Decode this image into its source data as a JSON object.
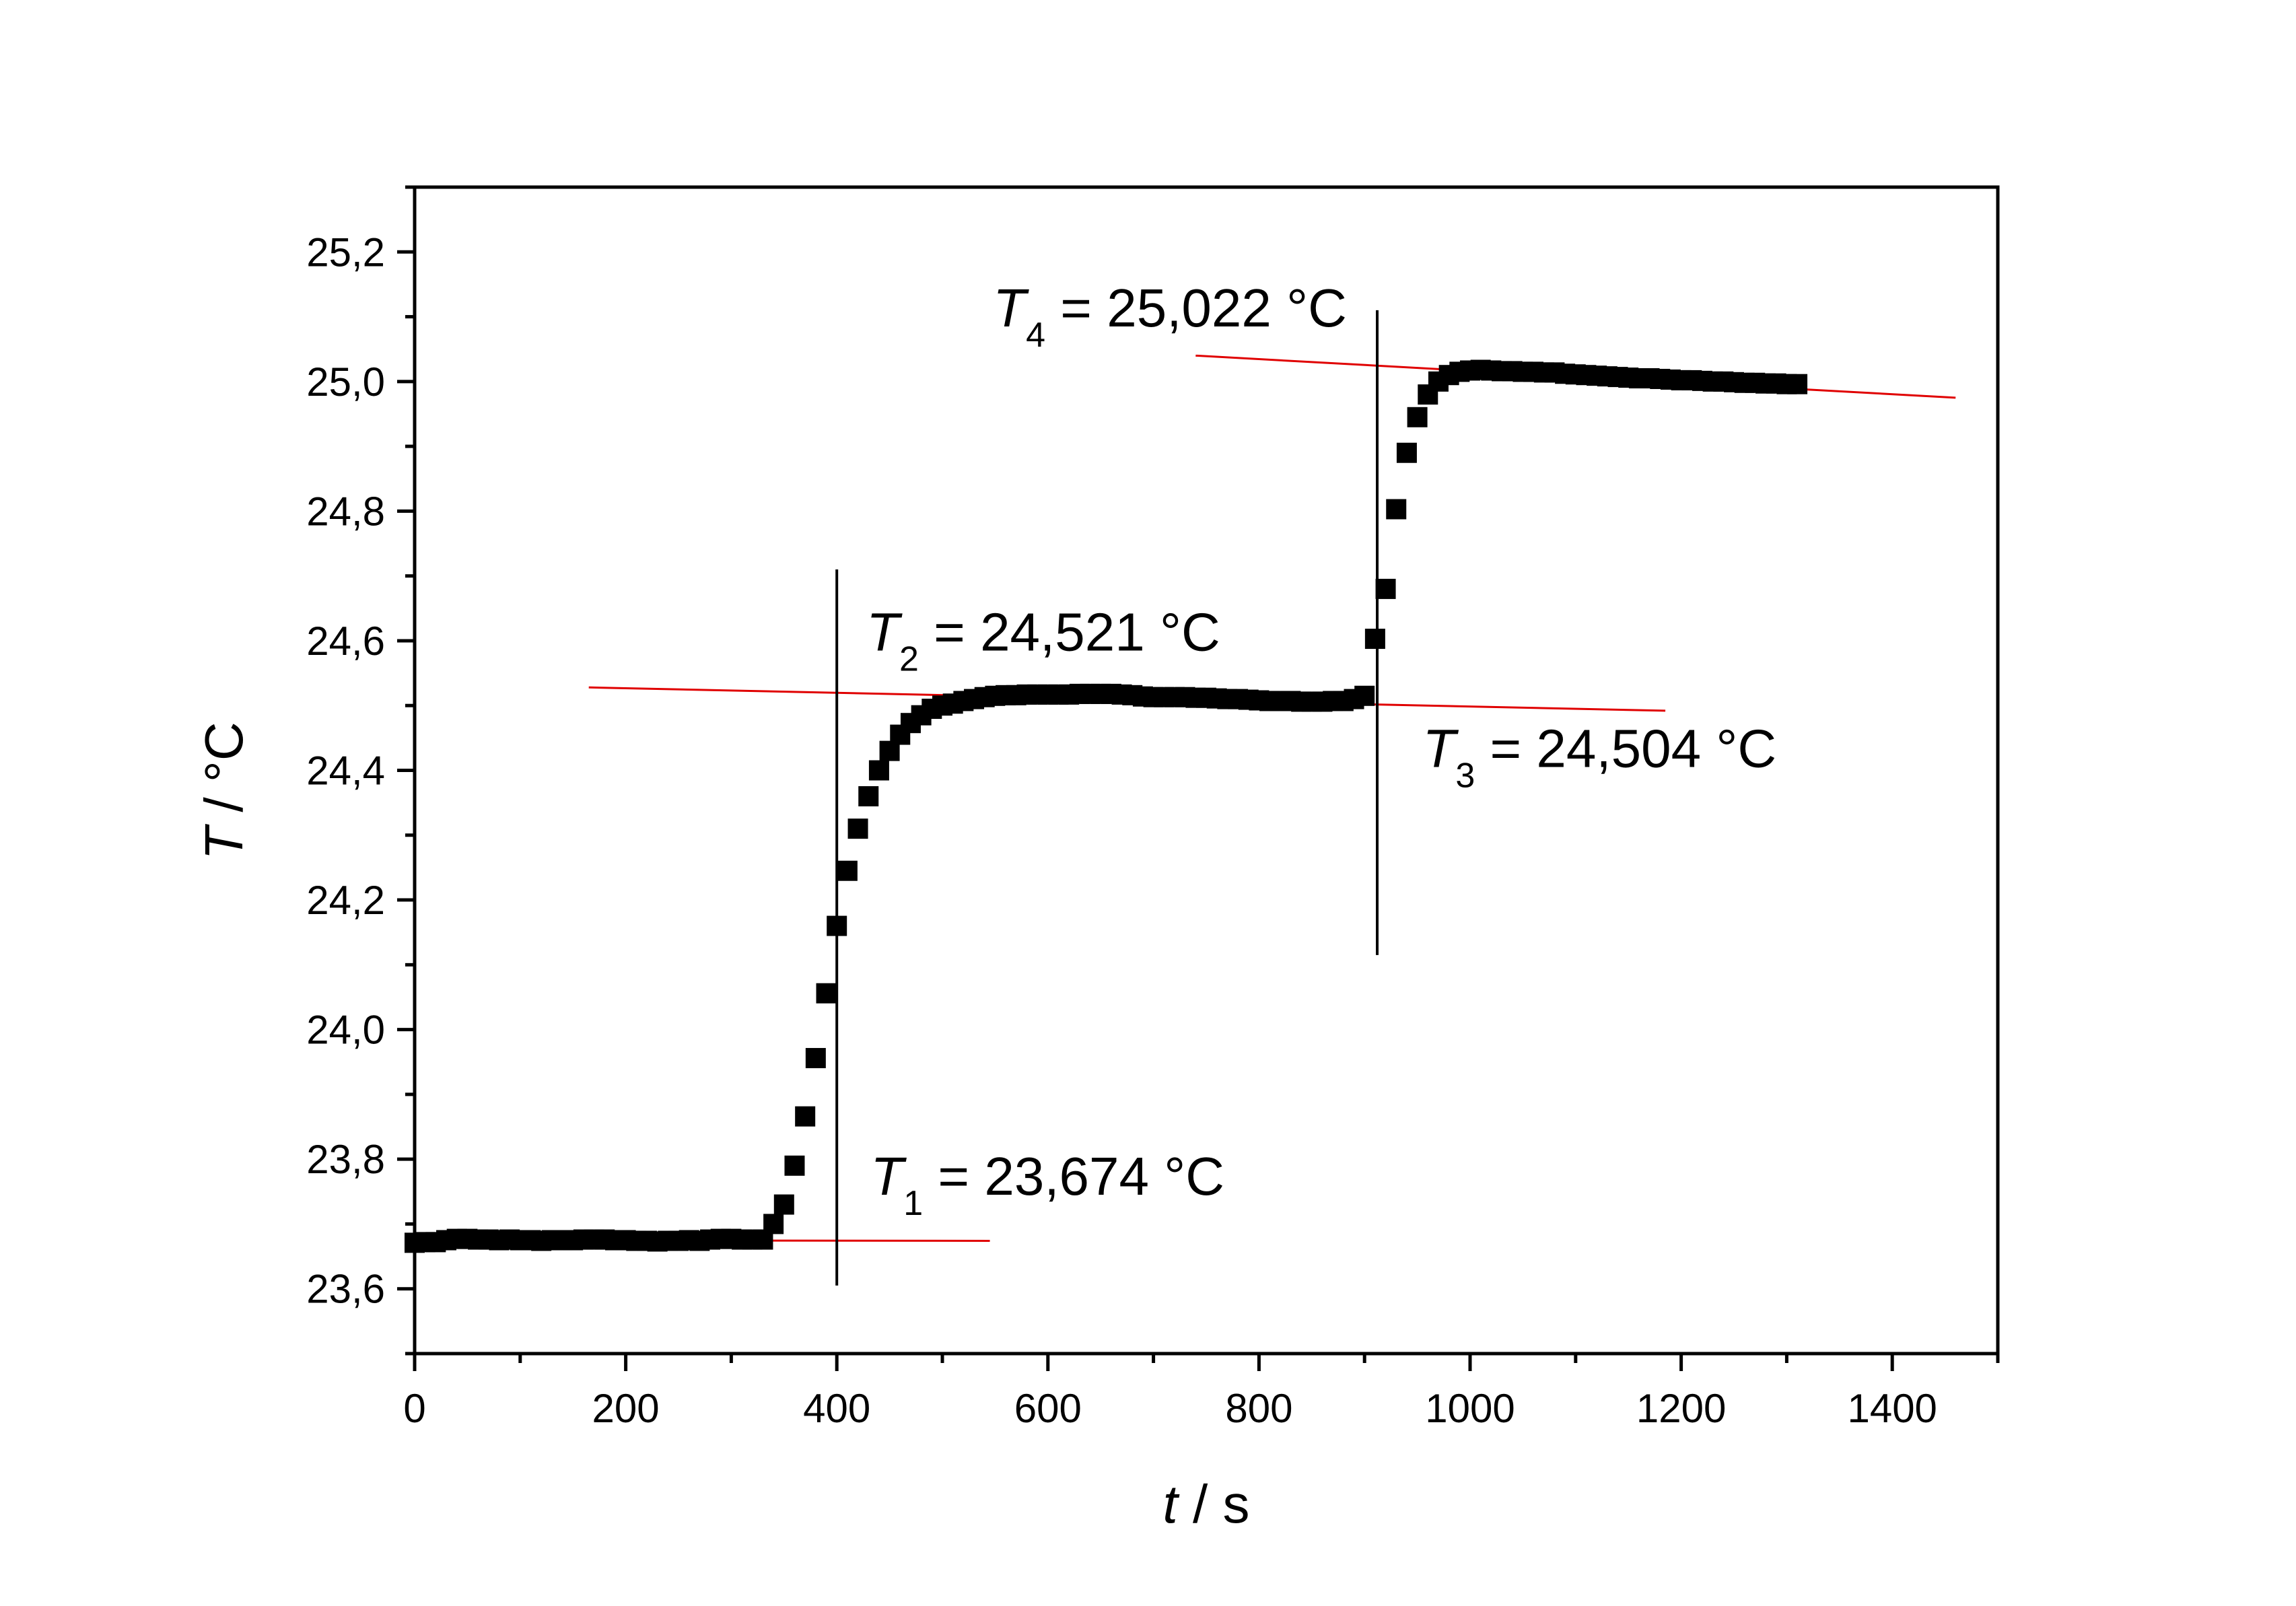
{
  "chart_data": {
    "type": "scatter",
    "xlabel": {
      "var": "t",
      "unit": " / s"
    },
    "ylabel": {
      "var": "T",
      "unit": " / °C"
    },
    "xlim": [
      0,
      1500
    ],
    "ylim": [
      23.5,
      25.3
    ],
    "x_ticks": [
      0,
      200,
      400,
      600,
      800,
      1000,
      1200,
      1400
    ],
    "x_tick_labels": [
      "0",
      "200",
      "400",
      "600",
      "800",
      "1000",
      "1200",
      "1400"
    ],
    "x_minor_step": 100,
    "y_ticks": [
      23.6,
      23.8,
      24.0,
      24.2,
      24.4,
      24.6,
      24.8,
      25.0,
      25.2
    ],
    "y_tick_labels": [
      "23,6",
      "23,8",
      "24,0",
      "24,2",
      "24,4",
      "24,6",
      "24,8",
      "25,0",
      "25,2"
    ],
    "y_minor_step": 0.1,
    "grid": false,
    "marker": "square",
    "marker_color": "#000000",
    "fit_line_color": "#e00000",
    "series": [
      {
        "x": [
          0,
          10,
          20,
          30,
          40,
          50,
          60,
          70,
          80,
          90,
          100,
          110,
          120,
          130,
          140,
          150,
          160,
          170,
          180,
          190,
          200,
          210,
          220,
          230,
          240,
          250,
          260,
          270,
          280,
          290,
          300,
          310,
          320,
          330,
          340,
          350,
          360,
          370,
          380,
          390,
          400,
          410,
          420,
          430,
          440,
          450,
          460,
          470,
          480,
          490,
          500,
          510,
          520,
          530,
          540,
          550,
          560,
          570,
          580,
          590,
          600,
          610,
          620,
          630,
          640,
          650,
          660,
          670,
          680,
          690,
          700,
          710,
          720,
          730,
          740,
          750,
          760,
          770,
          780,
          790,
          800,
          810,
          820,
          830,
          840,
          850,
          860,
          870,
          880,
          890,
          900,
          910,
          920,
          930,
          940,
          950,
          960,
          970,
          980,
          990,
          1000,
          1010,
          1020,
          1030,
          1040,
          1050,
          1060,
          1070,
          1080,
          1090,
          1100,
          1110,
          1120,
          1130,
          1140,
          1150,
          1160,
          1170,
          1180,
          1190,
          1200,
          1210,
          1220,
          1230,
          1240,
          1250,
          1260,
          1270,
          1280,
          1290,
          1300,
          1310
        ],
        "y": [
          23.671,
          23.672,
          23.672,
          23.675,
          23.677,
          23.677,
          23.676,
          23.676,
          23.675,
          23.676,
          23.675,
          23.675,
          23.674,
          23.675,
          23.675,
          23.675,
          23.676,
          23.676,
          23.676,
          23.675,
          23.675,
          23.674,
          23.674,
          23.673,
          23.674,
          23.674,
          23.675,
          23.674,
          23.676,
          23.677,
          23.677,
          23.676,
          23.676,
          23.676,
          23.7,
          23.73,
          23.79,
          23.866,
          23.956,
          24.056,
          24.16,
          24.245,
          24.31,
          24.36,
          24.4,
          24.43,
          24.455,
          24.473,
          24.485,
          24.495,
          24.5,
          24.503,
          24.507,
          24.51,
          24.513,
          24.515,
          24.516,
          24.516,
          24.517,
          24.517,
          24.517,
          24.517,
          24.517,
          24.518,
          24.518,
          24.518,
          24.518,
          24.517,
          24.516,
          24.514,
          24.513,
          24.513,
          24.513,
          24.513,
          24.512,
          24.512,
          24.511,
          24.51,
          24.51,
          24.509,
          24.508,
          24.507,
          24.507,
          24.507,
          24.506,
          24.506,
          24.506,
          24.507,
          24.507,
          24.51,
          24.515,
          24.603,
          24.68,
          24.803,
          24.89,
          24.945,
          24.98,
          25.0,
          25.01,
          25.015,
          25.017,
          25.018,
          25.017,
          25.016,
          25.016,
          25.015,
          25.015,
          25.014,
          25.014,
          25.012,
          25.011,
          25.01,
          25.009,
          25.008,
          25.007,
          25.006,
          25.005,
          25.005,
          25.004,
          25.003,
          25.002,
          25.002,
          25.001,
          25.0,
          25.0,
          24.999,
          24.998,
          24.998,
          24.997,
          24.997,
          24.996,
          24.996
        ]
      }
    ],
    "fit_lines": [
      {
        "x": [
          40,
          545
        ],
        "y": [
          23.675,
          23.674
        ]
      },
      {
        "x": [
          165,
          1185
        ],
        "y": [
          24.528,
          24.492
        ]
      },
      {
        "x": [
          740,
          1460
        ],
        "y": [
          25.04,
          24.975
        ]
      }
    ],
    "vertical_lines": [
      {
        "x": 400,
        "y": [
          23.605,
          24.71
        ]
      },
      {
        "x": 912,
        "y": [
          24.115,
          25.11
        ]
      }
    ],
    "annotations": [
      {
        "var": "T",
        "sub": "1",
        "text": " = 23,674 °C",
        "x": 432,
        "y": 23.745
      },
      {
        "var": "T",
        "sub": "2",
        "text": " = 24,521 °C",
        "x": 428,
        "y": 24.585
      },
      {
        "var": "T",
        "sub": "3",
        "text": " = 24,504 °C",
        "x": 955,
        "y": 24.405
      },
      {
        "var": "T",
        "sub": "4",
        "text": " = 25,022 °C",
        "x": 548,
        "y": 25.085
      }
    ]
  }
}
